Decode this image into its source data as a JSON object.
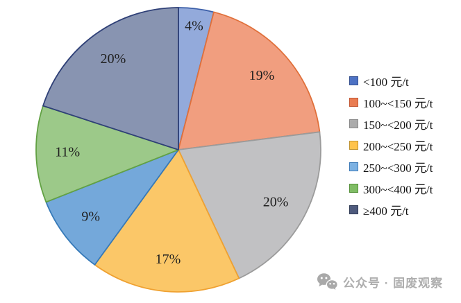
{
  "chart_data": {
    "type": "pie",
    "title": "",
    "unit_suffix": "%",
    "start_angle_deg": 0,
    "direction": "clockwise",
    "legend_position": "right",
    "label_color": "#1f1f1f",
    "series": [
      {
        "label": "<100 元/t",
        "value": 4,
        "fill": "#93aadb",
        "stroke": "#3b5ea8",
        "legend_fill": "#4d72c4",
        "legend_stroke": "#35508f"
      },
      {
        "label": "100~<150 元/t",
        "value": 19,
        "fill": "#f19e7f",
        "stroke": "#e0703b",
        "legend_fill": "#e97c52",
        "legend_stroke": "#c25632"
      },
      {
        "label": "150~<200 元/t",
        "value": 20,
        "fill": "#c1c1c3",
        "stroke": "#9b9b9b",
        "legend_fill": "#ababab",
        "legend_stroke": "#878787"
      },
      {
        "label": "200~<250 元/t",
        "value": 17,
        "fill": "#fbc768",
        "stroke": "#efa131",
        "legend_fill": "#ffc34c",
        "legend_stroke": "#c0922e"
      },
      {
        "label": "250~<300 元/t",
        "value": 9,
        "fill": "#74a8da",
        "stroke": "#3579b8",
        "legend_fill": "#7cb1e2",
        "legend_stroke": "#3b79b7"
      },
      {
        "label": "300~<400 元/t",
        "value": 11,
        "fill": "#9cc989",
        "stroke": "#62a144",
        "legend_fill": "#7fbc64",
        "legend_stroke": "#55913a"
      },
      {
        "label": "≥400 元/t",
        "value": 20,
        "fill": "#8894b1",
        "stroke": "#2f4077",
        "legend_fill": "#4e5a7d",
        "legend_stroke": "#2f3a54"
      }
    ]
  },
  "watermark": {
    "icon": "wechat-icon",
    "text": "公众号 · 固废观察",
    "color": "#aeaeae"
  }
}
